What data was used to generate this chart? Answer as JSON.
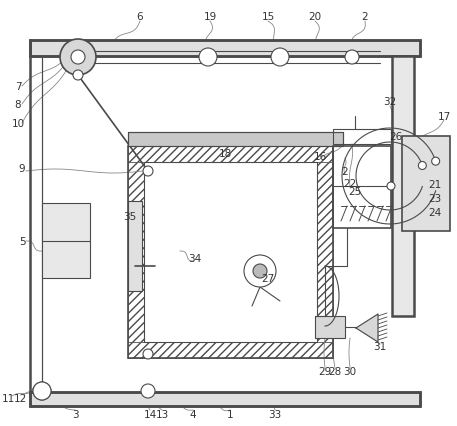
{
  "bg_color": "#ffffff",
  "line_color": "#4a4a4a",
  "fig_width": 4.57,
  "fig_height": 4.27,
  "dpi": 100,
  "label_color": "#333333",
  "gray_fill": "#cccccc",
  "light_fill": "#eeeeee"
}
